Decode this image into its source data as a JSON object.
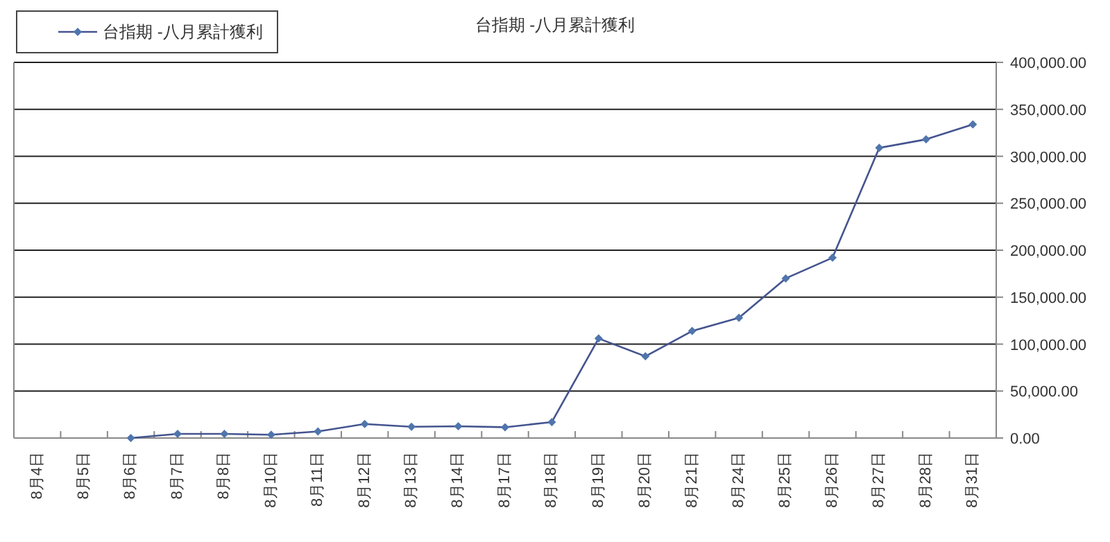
{
  "chart_data": {
    "type": "line",
    "title": "台指期 -八月累計獲利",
    "categories": [
      "8月4日",
      "8月5日",
      "8月6日",
      "8月7日",
      "8月8日",
      "8月10日",
      "8月11日",
      "8月12日",
      "8月13日",
      "8月14日",
      "8月17日",
      "8月18日",
      "8月19日",
      "8月20日",
      "8月21日",
      "8月24日",
      "8月25日",
      "8月26日",
      "8月27日",
      "8月28日",
      "8月31日"
    ],
    "series": [
      {
        "name": "台指期 -八月累計獲利",
        "color": "#44548f",
        "values": [
          null,
          null,
          0,
          4400,
          4400,
          3500,
          7000,
          15000,
          12000,
          12500,
          11500,
          17000,
          106000,
          87000,
          114000,
          128000,
          170000,
          192000,
          309000,
          318000,
          334000
        ]
      }
    ],
    "ylim": [
      0,
      400000
    ],
    "yticks": [
      {
        "value": 0,
        "label": "0.00"
      },
      {
        "value": 50000,
        "label": "50,000.00"
      },
      {
        "value": 100000,
        "label": "100,000.00"
      },
      {
        "value": 150000,
        "label": "150,000.00"
      },
      {
        "value": 200000,
        "label": "200,000.00"
      },
      {
        "value": 250000,
        "label": "250,000.00"
      },
      {
        "value": 300000,
        "label": "300,000.00"
      },
      {
        "value": 350000,
        "label": "350,000.00"
      },
      {
        "value": 400000,
        "label": "400,000.00"
      }
    ],
    "grid": "y",
    "legend": "top left",
    "marker": "diamond",
    "line_style": "solid"
  }
}
